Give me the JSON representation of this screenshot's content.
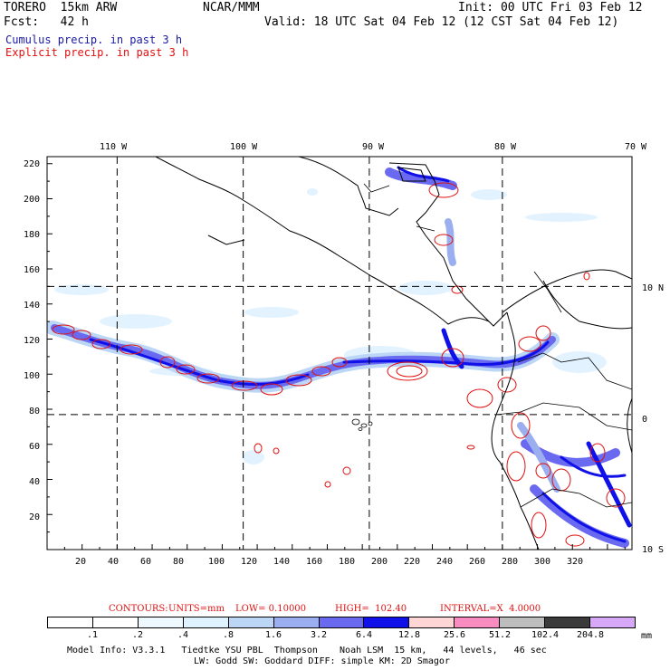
{
  "header": {
    "model": "TORERO  15km ARW",
    "org": "NCAR/MMM",
    "init": "Init: 00 UTC Fri 03 Feb 12",
    "fcst": "Fcst:   42 h",
    "valid": "Valid: 18 UTC Sat 04 Feb 12 (12 CST Sat 04 Feb 12)",
    "legend_cumulus": "Cumulus precip. in past 3 h",
    "legend_explicit": "Explicit precip. in past 3 h"
  },
  "map": {
    "lon_labels": [
      "110 W",
      "100 W",
      "90 W",
      "80 W",
      "70 W"
    ],
    "lat_labels": [
      "10 N",
      "0",
      "10 S"
    ],
    "y_ticks": [
      "220",
      "200",
      "180",
      "160",
      "140",
      "120",
      "100",
      "80",
      "60",
      "40",
      "20"
    ],
    "x_ticks": [
      "20",
      "40",
      "60",
      "80",
      "100",
      "120",
      "140",
      "160",
      "180",
      "200",
      "220",
      "240",
      "260",
      "280",
      "300",
      "320"
    ],
    "grid_x_values": [
      40,
      112,
      184,
      260
    ],
    "grid_y_values": [
      150,
      77
    ]
  },
  "contours": {
    "label": "CONTOURS:",
    "units": "UNITS=mm",
    "low": "LOW= 0.10000",
    "high": "HIGH=  102.40",
    "interval": "INTERVAL=X  4.0000"
  },
  "colorbar": {
    "labels": [
      ".1",
      ".2",
      ".4",
      ".8",
      "1.6",
      "3.2",
      "6.4",
      "12.8",
      "25.6",
      "51.2",
      "102.4",
      "204.8"
    ],
    "unit": "mm",
    "colors": [
      "#ffffff",
      "#ffffff",
      "#eef8ff",
      "#dff2ff",
      "#bcd6f6",
      "#9aaef0",
      "#6a6af0",
      "#1010e8",
      "#ffd6d6",
      "#f88cc0",
      "#bdbdbd",
      "#3a3a3a",
      "#d8a8f8"
    ]
  },
  "footer": {
    "line1": "Model Info: V3.3.1   Tiedtke YSU PBL  Thompson    Noah LSM  15 km,   44 levels,   46 sec",
    "line2": "LW: Godd SW: Goddard DIFF: simple KM: 2D Smagor"
  }
}
